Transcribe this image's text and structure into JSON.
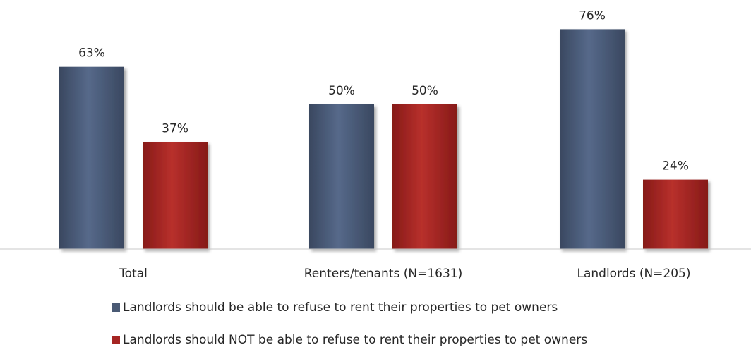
{
  "chart_data": {
    "type": "bar",
    "categories": [
      "Total",
      "Renters/tenants (N=1631)",
      "Landlords (N=205)"
    ],
    "series": [
      {
        "name": "Landlords should be able to refuse to rent their properties to pet owners",
        "values": [
          63,
          50,
          76
        ],
        "labels": [
          "63%",
          "50%",
          "76%"
        ],
        "color": "#4a5a74"
      },
      {
        "name": "Landlords should NOT be able to refuse to rent their properties to pet owners",
        "values": [
          37,
          50,
          24
        ],
        "labels": [
          "37%",
          "50%",
          "24%"
        ],
        "color": "#a52523"
      }
    ],
    "ylim": [
      0,
      100
    ],
    "grid": false,
    "legend": "bottom",
    "xlabel": "",
    "ylabel": ""
  }
}
